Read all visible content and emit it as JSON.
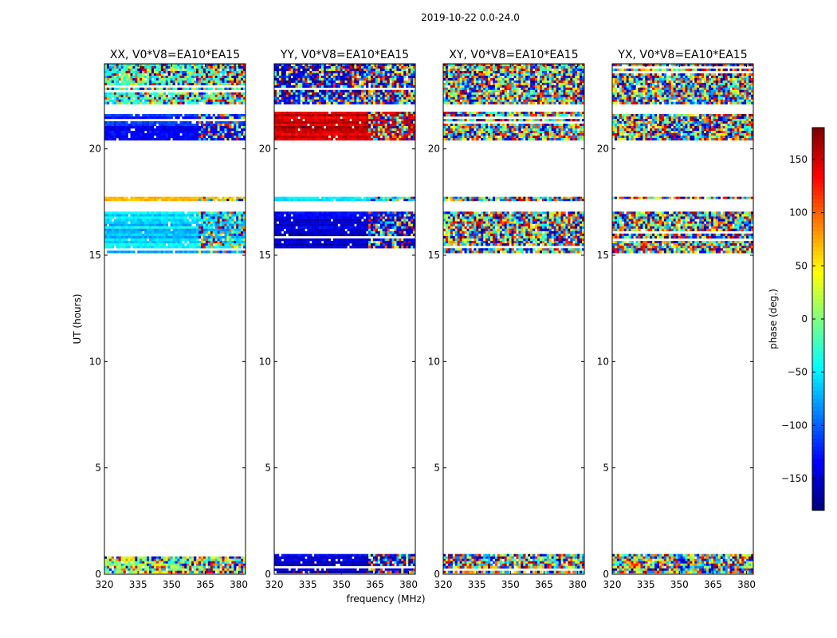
{
  "figure": {
    "title": "2019-10-22 0.0-24.0",
    "xlabel": "frequency (MHz)",
    "ylabel": "UT (hours)",
    "colorbar_label": "phase (deg.)"
  },
  "chart_data": {
    "type": "heatmap",
    "colormap": "jet",
    "x_range": [
      320,
      383
    ],
    "x_ticks": [
      320,
      335,
      350,
      365,
      380
    ],
    "y_range": [
      0,
      24
    ],
    "y_ticks": [
      0,
      5,
      10,
      15,
      20
    ],
    "color_range": [
      -180,
      180
    ],
    "color_ticks": [
      -150,
      -100,
      -50,
      0,
      50,
      100,
      150
    ],
    "panels": [
      {
        "title": "XX, V0*V8=EA10*EA15",
        "bands": [
          {
            "t0": 0.05,
            "t1": 0.95,
            "pattern": "mixed",
            "base": 10
          },
          {
            "t0": 15.1,
            "t1": 17.05,
            "pattern": "smooth",
            "base": -60
          },
          {
            "t0": 17.55,
            "t1": 17.75,
            "pattern": "smooth",
            "base": 60
          },
          {
            "t0": 20.4,
            "t1": 21.75,
            "pattern": "smooth",
            "base": -130
          },
          {
            "t0": 22.1,
            "t1": 24.0,
            "pattern": "mixed",
            "base": -30
          }
        ]
      },
      {
        "title": "YY, V0*V8=EA10*EA15",
        "bands": [
          {
            "t0": 0.05,
            "t1": 0.95,
            "pattern": "smooth",
            "base": -150
          },
          {
            "t0": 15.1,
            "t1": 17.05,
            "pattern": "smooth",
            "base": -150
          },
          {
            "t0": 17.55,
            "t1": 17.75,
            "pattern": "smooth",
            "base": -40
          },
          {
            "t0": 20.4,
            "t1": 21.75,
            "pattern": "smooth",
            "base": 150
          },
          {
            "t0": 22.1,
            "t1": 24.0,
            "pattern": "mixed",
            "base": -150
          }
        ]
      },
      {
        "title": "XY, V0*V8=EA10*EA15",
        "bands": [
          {
            "t0": 0.05,
            "t1": 0.95,
            "pattern": "noise",
            "base": 0
          },
          {
            "t0": 15.1,
            "t1": 17.05,
            "pattern": "noise",
            "base": 0
          },
          {
            "t0": 17.55,
            "t1": 17.75,
            "pattern": "noise",
            "base": 0
          },
          {
            "t0": 20.4,
            "t1": 21.75,
            "pattern": "noise",
            "base": 0
          },
          {
            "t0": 22.1,
            "t1": 24.0,
            "pattern": "noise",
            "base": 0
          }
        ]
      },
      {
        "title": "YX, V0*V8=EA10*EA15",
        "bands": [
          {
            "t0": 0.05,
            "t1": 0.95,
            "pattern": "noise",
            "base": 0
          },
          {
            "t0": 15.1,
            "t1": 17.05,
            "pattern": "noise",
            "base": 0
          },
          {
            "t0": 17.55,
            "t1": 17.75,
            "pattern": "noise",
            "base": 0
          },
          {
            "t0": 20.4,
            "t1": 21.75,
            "pattern": "noise",
            "base": 0
          },
          {
            "t0": 22.1,
            "t1": 24.0,
            "pattern": "noise",
            "base": 0
          }
        ]
      }
    ]
  }
}
